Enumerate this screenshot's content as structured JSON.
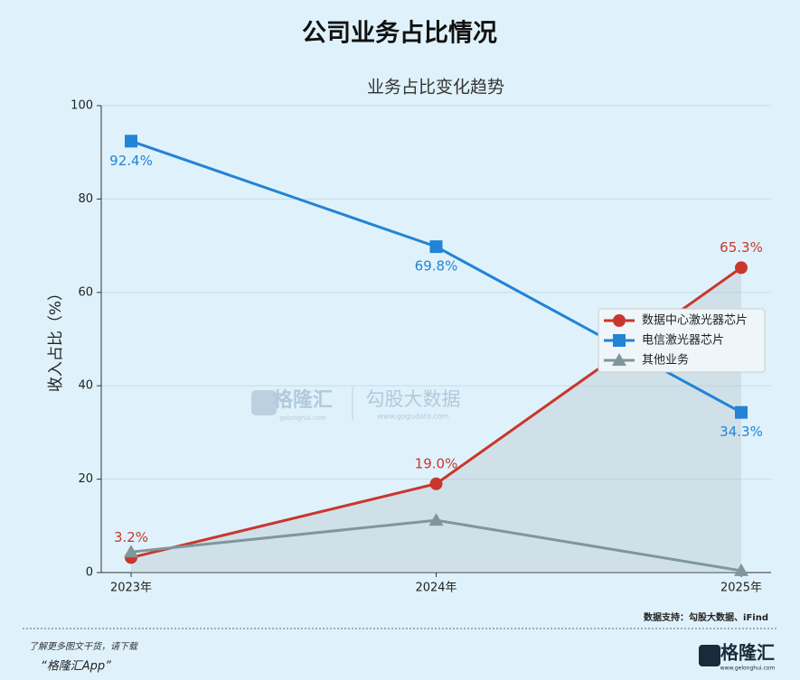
{
  "chart_data": {
    "type": "line",
    "title": "公司业务占比情况",
    "subtitle": "业务占比变化趋势",
    "y_label": "收入占比（%）",
    "categories": [
      "2023年",
      "2024年",
      "2025年"
    ],
    "series": [
      {
        "name": "数据中心激光器芯片",
        "color": "#c9372c",
        "marker": "circle",
        "label_position": "above",
        "values": [
          3.2,
          19.0,
          65.3
        ],
        "value_labels": [
          "3.2%",
          "19.0%",
          "65.3%"
        ]
      },
      {
        "name": "电信激光器芯片",
        "color": "#2383d6",
        "marker": "square",
        "label_position": "below",
        "values": [
          92.4,
          69.8,
          34.3
        ],
        "value_labels": [
          "92.4%",
          "69.8%",
          "34.3%"
        ]
      },
      {
        "name": "其他业务",
        "color": "#7f969c",
        "marker": "triangle",
        "values": [
          4.4,
          11.2,
          0.4
        ]
      }
    ],
    "ylim": [
      0,
      100
    ],
    "yticks": [
      0,
      20,
      40,
      60,
      80,
      100
    ],
    "grid": true,
    "legend": "center right"
  },
  "watermark": {
    "brand": "格隆汇",
    "brand_url": "gelonghui.com",
    "partner": "勾股大数据",
    "partner_url": "www.gogudata.com"
  },
  "source": "数据支持：勾股大数据、iFind",
  "footer": {
    "line1": "了解更多图文干货，请下载",
    "line2": "“格隆汇App”",
    "logo": "格隆汇",
    "logo_url": "www.gelonghui.com"
  }
}
